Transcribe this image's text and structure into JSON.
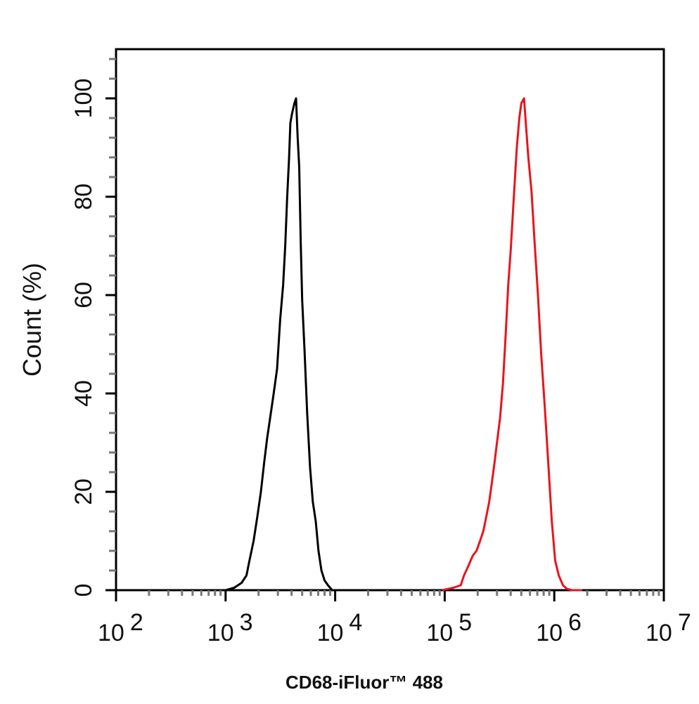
{
  "chart_data": {
    "type": "line",
    "xlabel": "CD68-iFluor™ 488",
    "ylabel": "Count  (%)",
    "x_scale": "log",
    "xlim": [
      100,
      10000000
    ],
    "ylim": [
      0,
      110
    ],
    "x_ticks": [
      {
        "base": "10",
        "exp": "2"
      },
      {
        "base": "10",
        "exp": "3"
      },
      {
        "base": "10",
        "exp": "4"
      },
      {
        "base": "10",
        "exp": "5"
      },
      {
        "base": "10",
        "exp": "6"
      },
      {
        "base": "10",
        "exp": "7"
      }
    ],
    "y_ticks": [
      "0",
      "20",
      "40",
      "60",
      "80",
      "100"
    ],
    "grid": false,
    "legend": "none",
    "series": [
      {
        "color": "#000000",
        "points": [
          [
            1000,
            0
          ],
          [
            1200,
            0.5
          ],
          [
            1400,
            1.5
          ],
          [
            1550,
            3
          ],
          [
            1650,
            6
          ],
          [
            1800,
            10
          ],
          [
            1950,
            15
          ],
          [
            2100,
            20
          ],
          [
            2250,
            26
          ],
          [
            2400,
            31
          ],
          [
            2550,
            35
          ],
          [
            2750,
            40
          ],
          [
            2950,
            45
          ],
          [
            3150,
            55
          ],
          [
            3350,
            62
          ],
          [
            3500,
            70
          ],
          [
            3650,
            80
          ],
          [
            3800,
            88
          ],
          [
            3900,
            95
          ],
          [
            4050,
            97
          ],
          [
            4250,
            99
          ],
          [
            4400,
            100
          ],
          [
            4550,
            92
          ],
          [
            4700,
            86
          ],
          [
            4850,
            71
          ],
          [
            5000,
            59
          ],
          [
            5250,
            49
          ],
          [
            5550,
            36
          ],
          [
            5900,
            25
          ],
          [
            6250,
            18
          ],
          [
            6650,
            14
          ],
          [
            7050,
            8
          ],
          [
            7500,
            4
          ],
          [
            8000,
            2
          ],
          [
            8600,
            1
          ],
          [
            9400,
            0
          ],
          [
            11000,
            0
          ],
          [
            14000,
            0
          ]
        ]
      },
      {
        "color": "#e8141c",
        "points": [
          [
            95000,
            0
          ],
          [
            120000,
            0.5
          ],
          [
            140000,
            1
          ],
          [
            150000,
            3
          ],
          [
            165000,
            5
          ],
          [
            180000,
            7
          ],
          [
            195000,
            8
          ],
          [
            210000,
            10
          ],
          [
            225000,
            12
          ],
          [
            240000,
            15
          ],
          [
            255000,
            18
          ],
          [
            270000,
            22
          ],
          [
            285000,
            26
          ],
          [
            300000,
            30
          ],
          [
            320000,
            35
          ],
          [
            340000,
            42
          ],
          [
            360000,
            52
          ],
          [
            380000,
            62
          ],
          [
            400000,
            69
          ],
          [
            425000,
            79
          ],
          [
            455000,
            90
          ],
          [
            480000,
            96
          ],
          [
            500000,
            99
          ],
          [
            530000,
            100
          ],
          [
            550000,
            95
          ],
          [
            580000,
            88
          ],
          [
            620000,
            81
          ],
          [
            660000,
            71
          ],
          [
            710000,
            60
          ],
          [
            760000,
            48
          ],
          [
            820000,
            37
          ],
          [
            880000,
            26
          ],
          [
            950000,
            14
          ],
          [
            1020000,
            6
          ],
          [
            1100000,
            3
          ],
          [
            1200000,
            1
          ],
          [
            1300000,
            0.3
          ],
          [
            1450000,
            0
          ],
          [
            1800000,
            0
          ]
        ]
      }
    ]
  }
}
